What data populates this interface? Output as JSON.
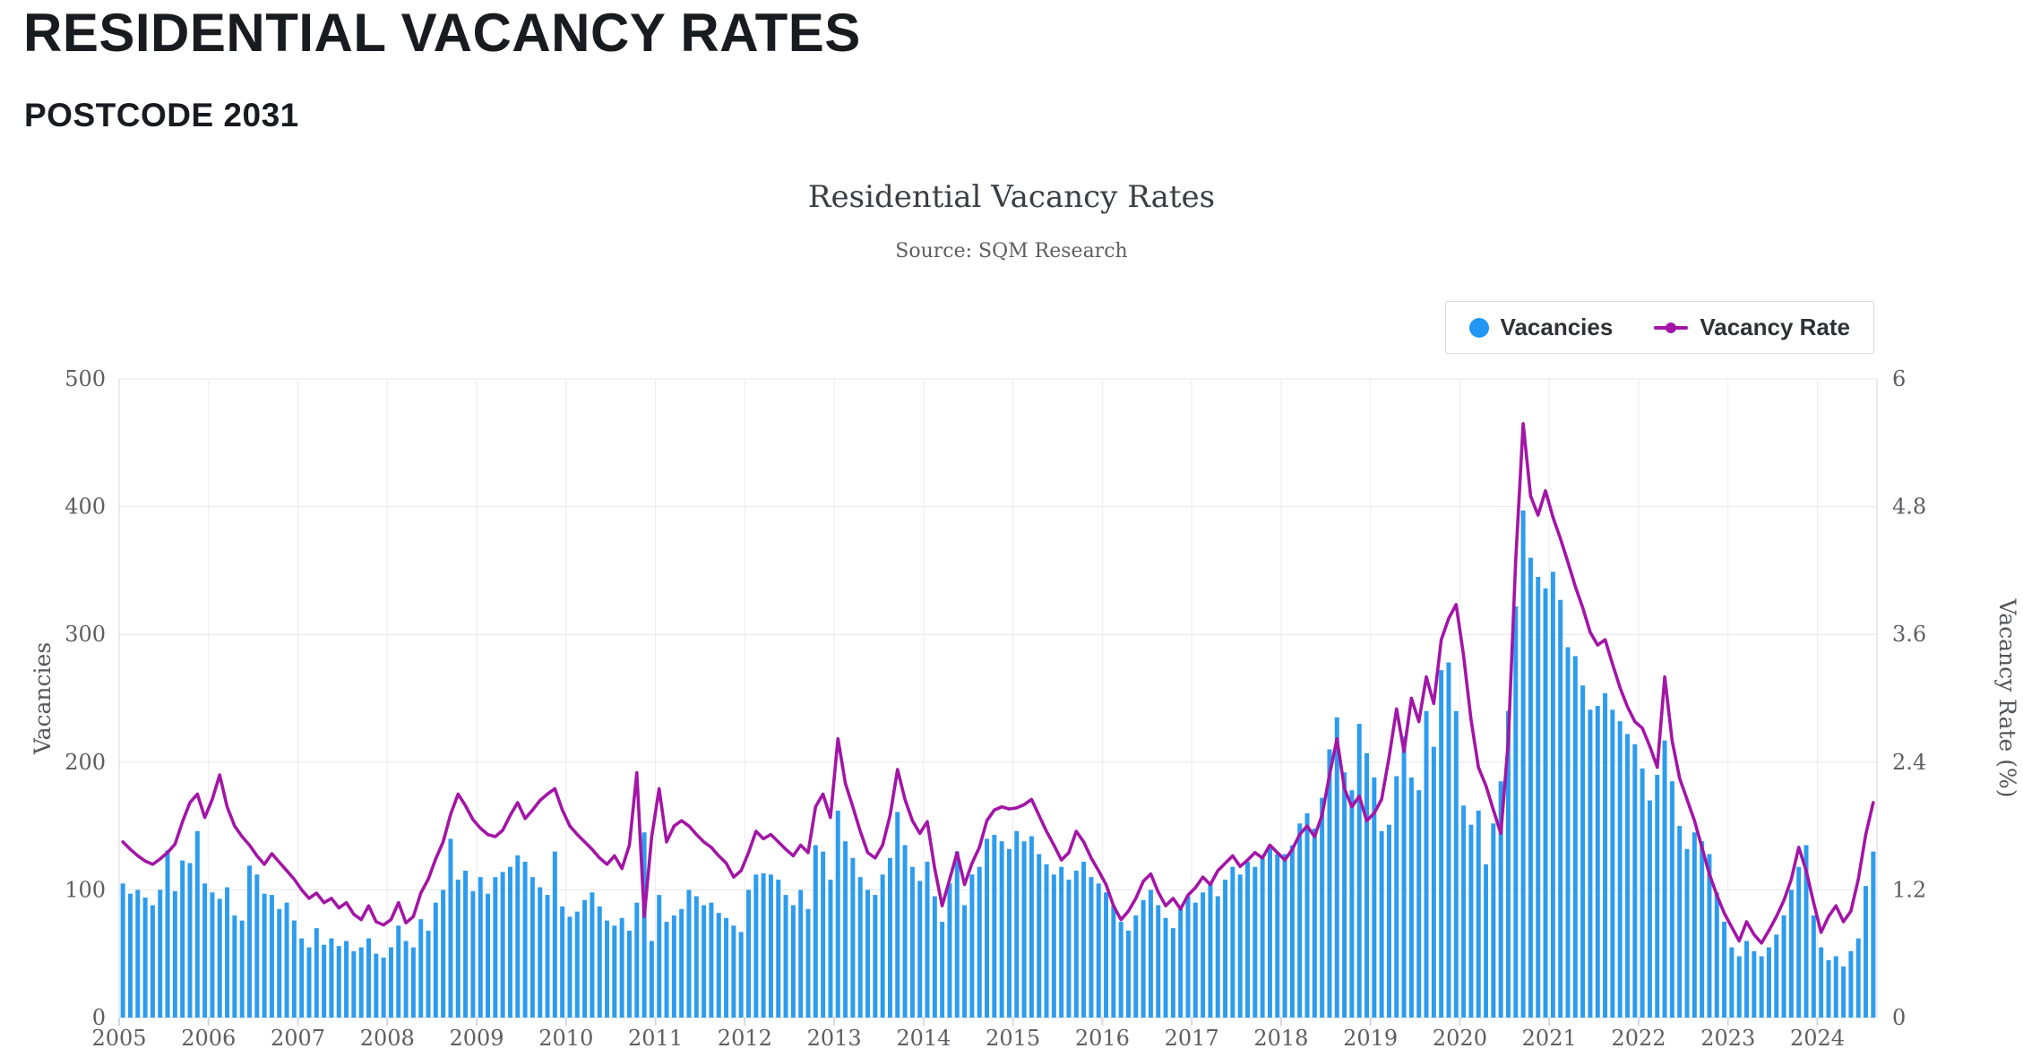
{
  "page": {
    "title": "RESIDENTIAL VACANCY RATES",
    "subtitle": "POSTCODE 2031"
  },
  "chart": {
    "title": "Residential Vacancy Rates",
    "source": "Source: SQM Research",
    "legend": [
      {
        "label": "Vacancies",
        "marker": "circle-icon",
        "color": "#2196F3"
      },
      {
        "label": "Vacancy Rate",
        "marker": "line-dot-icon",
        "color": "#A315A6"
      }
    ]
  },
  "colors": {
    "bar": "#2E9CEE",
    "line": "#A315A6",
    "grid": "#e7e7ea",
    "year_grid": "#ececf2",
    "axis_line": "#d7d7de",
    "tick_text": "#5d5d63",
    "axis_title_text": "#55565c"
  },
  "chart_data": {
    "type": "combo-bar-line",
    "x_interval": "monthly",
    "x_start": "2005-01",
    "x_end": "2024-08",
    "x_tick_labels": [
      "2005",
      "2006",
      "2007",
      "2008",
      "2009",
      "2010",
      "2011",
      "2012",
      "2013",
      "2014",
      "2015",
      "2016",
      "2017",
      "2018",
      "2019",
      "2020",
      "2021",
      "2022",
      "2023",
      "2024"
    ],
    "grid": true,
    "legend_position": "top-right",
    "axes": {
      "left": {
        "title": "Vacancies",
        "min": 0,
        "max": 500,
        "ticks": [
          0,
          100,
          200,
          300,
          400,
          500
        ]
      },
      "right": {
        "title": "Vacancy Rate (%)",
        "min": 0,
        "max": 6,
        "ticks": [
          0,
          1.2,
          2.4,
          3.6,
          4.8,
          6
        ]
      }
    },
    "series": [
      {
        "name": "Vacancies",
        "type": "bar",
        "axis": "left",
        "color": "#2E9CEE",
        "values": [
          105,
          97,
          100,
          94,
          88,
          100,
          131,
          99,
          123,
          121,
          146,
          105,
          98,
          93,
          102,
          80,
          76,
          119,
          112,
          97,
          96,
          85,
          90,
          76,
          62,
          55,
          70,
          57,
          62,
          56,
          60,
          52,
          55,
          62,
          50,
          47,
          55,
          72,
          60,
          55,
          77,
          68,
          90,
          100,
          140,
          108,
          115,
          99,
          110,
          97,
          110,
          114,
          118,
          127,
          122,
          110,
          102,
          96,
          130,
          87,
          79,
          83,
          92,
          98,
          87,
          76,
          72,
          78,
          68,
          90,
          145,
          60,
          96,
          75,
          80,
          85,
          100,
          95,
          88,
          90,
          82,
          78,
          72,
          67,
          100,
          112,
          113,
          112,
          108,
          96,
          88,
          100,
          85,
          135,
          130,
          108,
          162,
          138,
          125,
          110,
          100,
          96,
          112,
          125,
          161,
          135,
          118,
          107,
          122,
          95,
          75,
          105,
          130,
          88,
          112,
          118,
          140,
          143,
          138,
          132,
          146,
          138,
          142,
          128,
          120,
          112,
          118,
          108,
          115,
          122,
          110,
          105,
          98,
          88,
          75,
          68,
          80,
          92,
          100,
          88,
          78,
          70,
          85,
          95,
          90,
          98,
          105,
          95,
          108,
          118,
          112,
          122,
          118,
          125,
          135,
          128,
          128,
          135,
          152,
          160,
          148,
          172,
          210,
          235,
          192,
          178,
          230,
          207,
          188,
          146,
          151,
          189,
          220,
          188,
          178,
          240,
          212,
          272,
          278,
          240,
          166,
          151,
          162,
          120,
          152,
          185,
          240,
          322,
          397,
          360,
          345,
          336,
          349,
          327,
          290,
          283,
          260,
          241,
          244,
          254,
          241,
          232,
          222,
          214,
          195,
          170,
          190,
          217,
          185,
          150,
          132,
          145,
          138,
          128,
          98,
          75,
          55,
          48,
          60,
          52,
          48,
          55,
          65,
          80,
          100,
          118,
          135,
          80,
          55,
          45,
          48,
          40,
          52,
          62,
          103,
          130
        ]
      },
      {
        "name": "Vacancy Rate",
        "type": "line",
        "axis": "right",
        "color": "#A315A6",
        "values": [
          1.65,
          1.58,
          1.52,
          1.47,
          1.44,
          1.49,
          1.55,
          1.63,
          1.84,
          2.02,
          2.1,
          1.88,
          2.05,
          2.28,
          1.98,
          1.8,
          1.7,
          1.62,
          1.52,
          1.44,
          1.54,
          1.46,
          1.38,
          1.3,
          1.2,
          1.12,
          1.17,
          1.08,
          1.12,
          1.03,
          1.08,
          0.97,
          0.92,
          1.05,
          0.9,
          0.87,
          0.92,
          1.08,
          0.89,
          0.95,
          1.17,
          1.3,
          1.49,
          1.65,
          1.91,
          2.1,
          1.99,
          1.86,
          1.78,
          1.72,
          1.7,
          1.76,
          1.9,
          2.02,
          1.87,
          1.95,
          2.04,
          2.1,
          2.15,
          1.95,
          1.8,
          1.72,
          1.65,
          1.58,
          1.5,
          1.44,
          1.52,
          1.4,
          1.62,
          2.3,
          0.95,
          1.7,
          2.15,
          1.65,
          1.8,
          1.85,
          1.8,
          1.72,
          1.65,
          1.6,
          1.52,
          1.45,
          1.32,
          1.38,
          1.55,
          1.75,
          1.68,
          1.72,
          1.65,
          1.58,
          1.52,
          1.62,
          1.55,
          1.98,
          2.1,
          1.88,
          2.62,
          2.2,
          1.98,
          1.75,
          1.55,
          1.5,
          1.62,
          1.9,
          2.33,
          2.05,
          1.85,
          1.73,
          1.84,
          1.4,
          1.05,
          1.3,
          1.55,
          1.25,
          1.45,
          1.6,
          1.85,
          1.95,
          1.98,
          1.96,
          1.97,
          2.0,
          2.05,
          1.9,
          1.75,
          1.62,
          1.48,
          1.55,
          1.75,
          1.65,
          1.5,
          1.38,
          1.25,
          1.05,
          0.92,
          1.0,
          1.12,
          1.28,
          1.35,
          1.18,
          1.05,
          1.12,
          1.02,
          1.15,
          1.22,
          1.32,
          1.25,
          1.38,
          1.45,
          1.52,
          1.42,
          1.48,
          1.55,
          1.5,
          1.62,
          1.55,
          1.48,
          1.58,
          1.72,
          1.8,
          1.7,
          1.9,
          2.28,
          2.62,
          2.15,
          1.98,
          2.08,
          1.85,
          1.92,
          2.05,
          2.45,
          2.9,
          2.5,
          3.0,
          2.78,
          3.2,
          2.95,
          3.55,
          3.75,
          3.88,
          3.4,
          2.8,
          2.35,
          2.18,
          1.95,
          1.73,
          2.6,
          4.3,
          5.58,
          4.9,
          4.72,
          4.95,
          4.7,
          4.5,
          4.28,
          4.05,
          3.85,
          3.62,
          3.5,
          3.55,
          3.32,
          3.1,
          2.92,
          2.78,
          2.72,
          2.55,
          2.35,
          3.2,
          2.6,
          2.25,
          2.05,
          1.85,
          1.6,
          1.35,
          1.15,
          0.98,
          0.85,
          0.72,
          0.9,
          0.78,
          0.7,
          0.82,
          0.95,
          1.1,
          1.3,
          1.6,
          1.38,
          1.08,
          0.8,
          0.95,
          1.05,
          0.9,
          1.0,
          1.3,
          1.72,
          2.02
        ]
      }
    ]
  }
}
